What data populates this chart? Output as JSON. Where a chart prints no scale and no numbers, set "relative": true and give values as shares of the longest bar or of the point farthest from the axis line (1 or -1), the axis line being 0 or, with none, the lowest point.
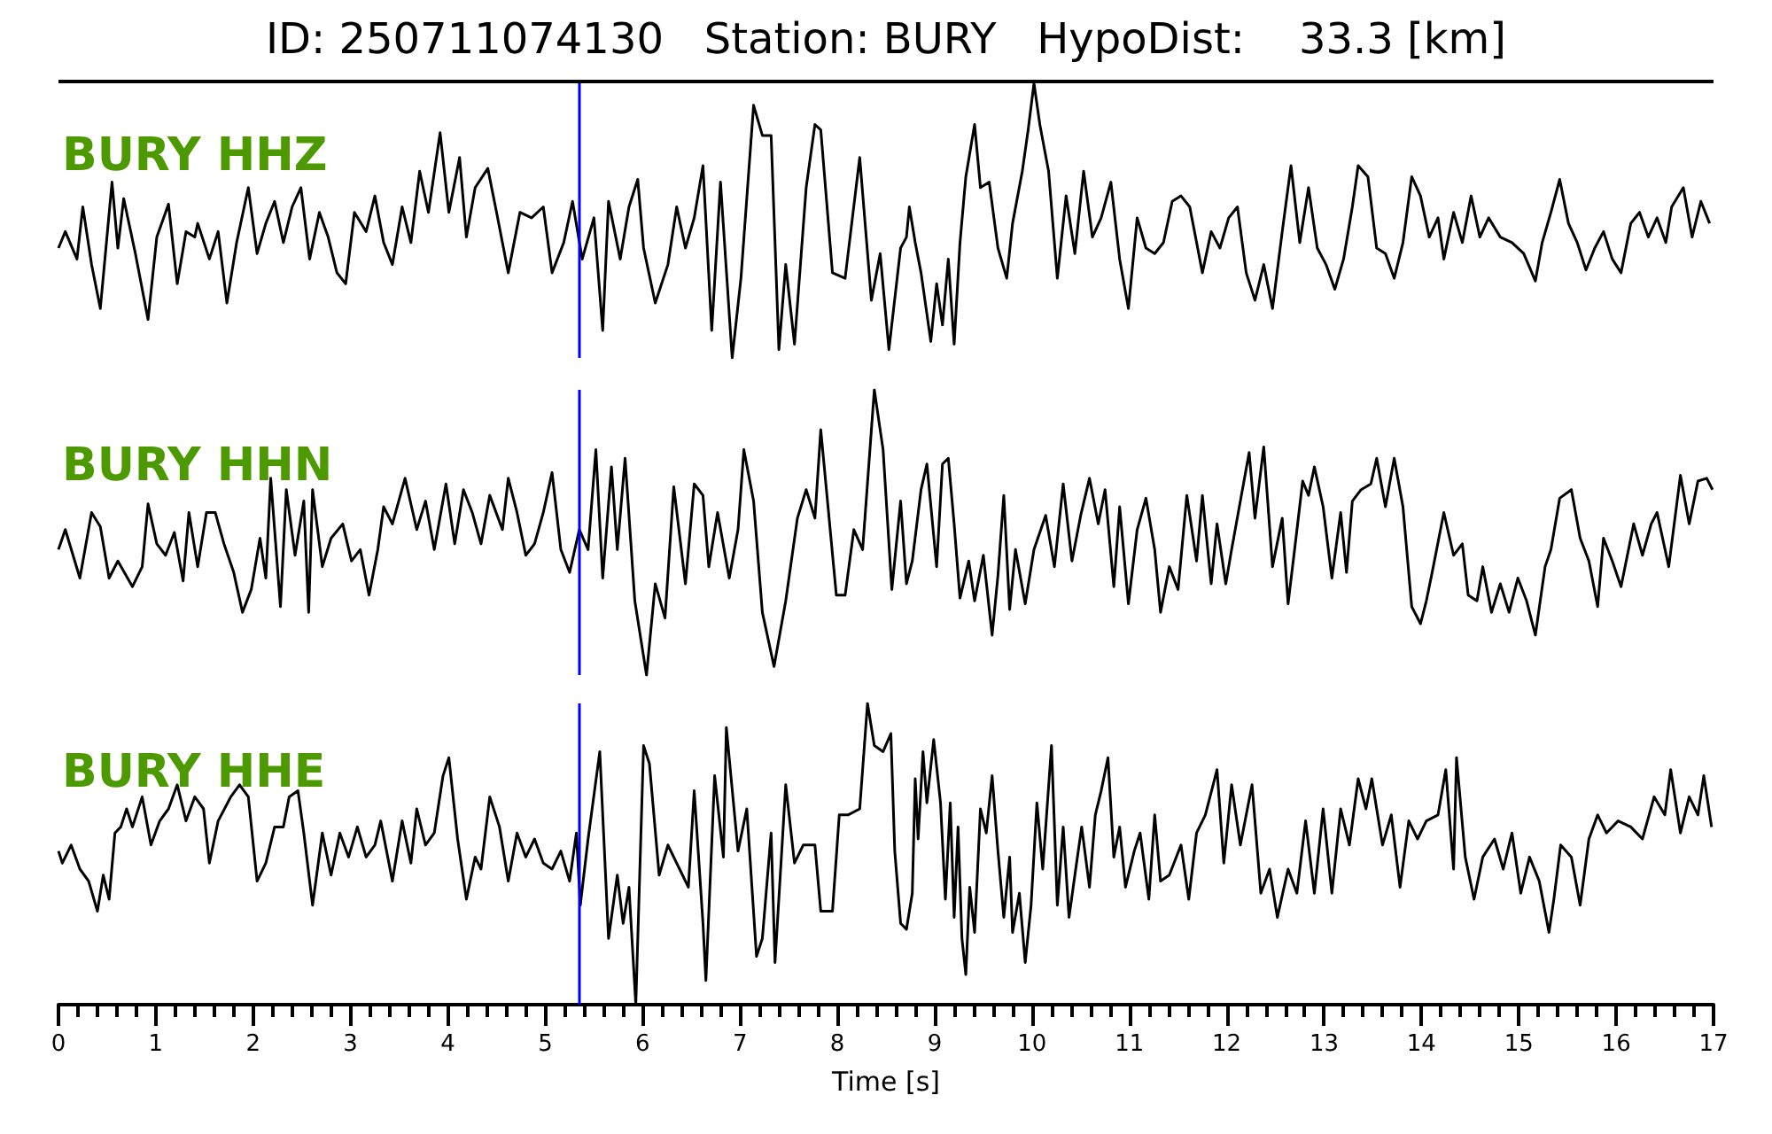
{
  "chart_data": [
    {
      "type": "line",
      "title": "ID: 250711074130   Station: BURY   HypoDist:    33.3 [km]",
      "annotations": [
        "BURY HHZ"
      ],
      "relative": true,
      "xlim": [
        0,
        17
      ],
      "tick_labels": false,
      "marker": "none",
      "color": "#000000",
      "ref_lines": [
        {
          "axis": "x",
          "value": 5.35,
          "color": "#0000ff"
        }
      ],
      "x": [
        0,
        0.07,
        0.19,
        0.25,
        0.34,
        0.43,
        0.55,
        0.61,
        0.67,
        0.79,
        0.92,
        1.01,
        1.13,
        1.22,
        1.31,
        1.4,
        1.43,
        1.55,
        1.64,
        1.73,
        1.83,
        1.95,
        2.04,
        2.13,
        2.22,
        2.31,
        2.4,
        2.49,
        2.58,
        2.68,
        2.77,
        2.86,
        2.95,
        3.04,
        3.16,
        3.25,
        3.34,
        3.43,
        3.53,
        3.62,
        3.71,
        3.8,
        3.92,
        4.01,
        4.12,
        4.19,
        4.28,
        4.41,
        4.5,
        4.62,
        4.74,
        4.86,
        4.98,
        5.07,
        5.19,
        5.28,
        5.38,
        5.5,
        5.59,
        5.65,
        5.77,
        5.86,
        5.95,
        6.01,
        6.13,
        6.26,
        6.35,
        6.44,
        6.53,
        6.62,
        6.71,
        6.8,
        6.92,
        7.01,
        7.14,
        7.23,
        7.32,
        7.4,
        7.47,
        7.56,
        7.68,
        7.77,
        7.83,
        7.95,
        8.08,
        8.23,
        8.35,
        8.44,
        8.53,
        8.65,
        8.71,
        8.74,
        8.8,
        8.86,
        8.96,
        9.02,
        9.08,
        9.14,
        9.2,
        9.26,
        9.32,
        9.41,
        9.47,
        9.56,
        9.65,
        9.74,
        9.8,
        9.9,
        9.96,
        10.02,
        10.08,
        10.17,
        10.26,
        10.35,
        10.44,
        10.53,
        10.62,
        10.71,
        10.81,
        10.9,
        10.99,
        11.08,
        11.17,
        11.26,
        11.35,
        11.44,
        11.53,
        11.62,
        11.75,
        11.84,
        11.93,
        12.02,
        12.11,
        12.2,
        12.29,
        12.38,
        12.47,
        12.57,
        12.66,
        12.75,
        12.84,
        12.93,
        13.02,
        13.11,
        13.2,
        13.29,
        13.35,
        13.45,
        13.54,
        13.63,
        13.72,
        13.81,
        13.9,
        13.99,
        14.08,
        14.17,
        14.23,
        14.33,
        14.42,
        14.51,
        14.6,
        14.69,
        14.81,
        14.93,
        15.05,
        15.17,
        15.24,
        15.33,
        15.42,
        15.51,
        15.6,
        15.69,
        15.78,
        15.87,
        15.96,
        16.05,
        16.15,
        16.24,
        16.33,
        16.42,
        16.51,
        16.57,
        16.69,
        16.78,
        16.87,
        16.96
      ],
      "values": [
        0.4,
        0.46,
        0.36,
        0.55,
        0.34,
        0.18,
        0.64,
        0.4,
        0.58,
        0.38,
        0.14,
        0.44,
        0.56,
        0.27,
        0.46,
        0.44,
        0.49,
        0.36,
        0.46,
        0.2,
        0.42,
        0.62,
        0.38,
        0.49,
        0.57,
        0.42,
        0.55,
        0.62,
        0.36,
        0.53,
        0.44,
        0.31,
        0.27,
        0.53,
        0.46,
        0.59,
        0.42,
        0.34,
        0.55,
        0.42,
        0.68,
        0.53,
        0.82,
        0.53,
        0.73,
        0.44,
        0.62,
        0.69,
        0.53,
        0.31,
        0.53,
        0.51,
        0.55,
        0.31,
        0.42,
        0.57,
        0.36,
        0.51,
        0.1,
        0.57,
        0.36,
        0.55,
        0.65,
        0.4,
        0.2,
        0.34,
        0.55,
        0.4,
        0.51,
        0.7,
        0.1,
        0.64,
        0.0,
        0.29,
        0.92,
        0.81,
        0.81,
        0.03,
        0.34,
        0.05,
        0.62,
        0.85,
        0.83,
        0.31,
        0.29,
        0.73,
        0.21,
        0.38,
        0.03,
        0.4,
        0.44,
        0.55,
        0.42,
        0.31,
        0.06,
        0.27,
        0.12,
        0.36,
        0.05,
        0.42,
        0.66,
        0.85,
        0.62,
        0.64,
        0.4,
        0.29,
        0.49,
        0.68,
        0.83,
        1.0,
        0.85,
        0.68,
        0.29,
        0.59,
        0.38,
        0.68,
        0.44,
        0.51,
        0.64,
        0.36,
        0.18,
        0.51,
        0.4,
        0.38,
        0.42,
        0.57,
        0.59,
        0.55,
        0.31,
        0.46,
        0.4,
        0.51,
        0.55,
        0.31,
        0.21,
        0.34,
        0.18,
        0.46,
        0.7,
        0.42,
        0.62,
        0.4,
        0.34,
        0.25,
        0.36,
        0.55,
        0.7,
        0.66,
        0.4,
        0.38,
        0.29,
        0.42,
        0.66,
        0.59,
        0.44,
        0.51,
        0.36,
        0.53,
        0.42,
        0.59,
        0.44,
        0.51,
        0.44,
        0.42,
        0.38,
        0.28,
        0.42,
        0.53,
        0.65,
        0.49,
        0.42,
        0.32,
        0.4,
        0.46,
        0.36,
        0.31,
        0.49,
        0.53,
        0.44,
        0.51,
        0.42,
        0.55,
        0.62,
        0.44,
        0.57,
        0.49
      ]
    },
    {
      "type": "line",
      "annotations": [
        "BURY HHN"
      ],
      "relative": true,
      "xlim": [
        0,
        17
      ],
      "tick_labels": false,
      "marker": "none",
      "color": "#000000",
      "ref_lines": [
        {
          "axis": "x",
          "value": 5.35,
          "color": "#0000ff"
        }
      ],
      "x": [
        0,
        0.07,
        0.22,
        0.34,
        0.43,
        0.52,
        0.61,
        0.76,
        0.86,
        0.92,
        1.01,
        1.1,
        1.19,
        1.28,
        1.34,
        1.43,
        1.52,
        1.61,
        1.7,
        1.8,
        1.89,
        1.98,
        2.07,
        2.13,
        2.18,
        2.28,
        2.34,
        2.43,
        2.52,
        2.57,
        2.61,
        2.71,
        2.8,
        2.92,
        3.01,
        3.1,
        3.19,
        3.28,
        3.34,
        3.43,
        3.56,
        3.68,
        3.77,
        3.86,
        3.98,
        4.07,
        4.16,
        4.25,
        4.34,
        4.43,
        4.56,
        4.62,
        4.71,
        4.8,
        4.89,
        4.98,
        5.07,
        5.16,
        5.25,
        5.35,
        5.44,
        5.52,
        5.59,
        5.68,
        5.74,
        5.82,
        5.92,
        6.04,
        6.13,
        6.23,
        6.32,
        6.44,
        6.53,
        6.62,
        6.68,
        6.77,
        6.89,
        6.98,
        7.04,
        7.14,
        7.23,
        7.35,
        7.47,
        7.59,
        7.68,
        7.77,
        7.83,
        7.99,
        8.08,
        8.17,
        8.26,
        8.38,
        8.47,
        8.56,
        8.65,
        8.71,
        8.77,
        8.86,
        8.92,
        9.02,
        9.08,
        9.14,
        9.2,
        9.26,
        9.35,
        9.41,
        9.5,
        9.59,
        9.65,
        9.71,
        9.77,
        9.83,
        9.93,
        10.02,
        10.14,
        10.23,
        10.32,
        10.41,
        10.5,
        10.59,
        10.68,
        10.75,
        10.84,
        10.9,
        10.99,
        11.08,
        11.17,
        11.26,
        11.32,
        11.41,
        11.5,
        11.59,
        11.69,
        11.75,
        11.84,
        11.9,
        11.99,
        12.05,
        12.14,
        12.23,
        12.29,
        12.38,
        12.47,
        12.57,
        12.63,
        12.69,
        12.78,
        12.84,
        12.9,
        12.99,
        13.08,
        13.17,
        13.23,
        13.29,
        13.38,
        13.48,
        13.54,
        13.63,
        13.72,
        13.81,
        13.9,
        13.99,
        14.05,
        14.11,
        14.23,
        14.33,
        14.42,
        14.48,
        14.57,
        14.63,
        14.72,
        14.81,
        14.9,
        14.99,
        15.08,
        15.17,
        15.27,
        15.33,
        15.42,
        15.54,
        15.63,
        15.72,
        15.81,
        15.87,
        15.96,
        16.05,
        16.18,
        16.27,
        16.36,
        16.42,
        16.54,
        16.66,
        16.75,
        16.84,
        16.93,
        16.99
      ],
      "values": [
        0.44,
        0.51,
        0.34,
        0.57,
        0.52,
        0.34,
        0.4,
        0.31,
        0.38,
        0.6,
        0.46,
        0.42,
        0.5,
        0.33,
        0.57,
        0.38,
        0.57,
        0.57,
        0.46,
        0.36,
        0.22,
        0.3,
        0.48,
        0.34,
        0.69,
        0.24,
        0.65,
        0.42,
        0.61,
        0.22,
        0.65,
        0.38,
        0.48,
        0.53,
        0.4,
        0.44,
        0.28,
        0.44,
        0.59,
        0.53,
        0.69,
        0.51,
        0.61,
        0.44,
        0.67,
        0.46,
        0.65,
        0.57,
        0.46,
        0.63,
        0.51,
        0.69,
        0.57,
        0.42,
        0.46,
        0.57,
        0.71,
        0.44,
        0.36,
        0.51,
        0.44,
        0.79,
        0.34,
        0.73,
        0.44,
        0.76,
        0.26,
        0.0,
        0.32,
        0.2,
        0.66,
        0.32,
        0.67,
        0.63,
        0.38,
        0.57,
        0.34,
        0.51,
        0.79,
        0.61,
        0.22,
        0.03,
        0.26,
        0.55,
        0.65,
        0.55,
        0.86,
        0.28,
        0.28,
        0.51,
        0.44,
        1.0,
        0.79,
        0.3,
        0.61,
        0.32,
        0.4,
        0.65,
        0.74,
        0.38,
        0.74,
        0.76,
        0.53,
        0.27,
        0.4,
        0.26,
        0.42,
        0.14,
        0.35,
        0.63,
        0.23,
        0.44,
        0.25,
        0.44,
        0.56,
        0.38,
        0.67,
        0.4,
        0.56,
        0.69,
        0.53,
        0.65,
        0.31,
        0.59,
        0.25,
        0.51,
        0.62,
        0.44,
        0.22,
        0.38,
        0.3,
        0.63,
        0.4,
        0.63,
        0.32,
        0.53,
        0.32,
        0.44,
        0.61,
        0.78,
        0.55,
        0.8,
        0.38,
        0.55,
        0.25,
        0.42,
        0.68,
        0.63,
        0.73,
        0.59,
        0.34,
        0.57,
        0.36,
        0.61,
        0.65,
        0.67,
        0.76,
        0.59,
        0.76,
        0.59,
        0.24,
        0.18,
        0.26,
        0.36,
        0.57,
        0.42,
        0.46,
        0.28,
        0.26,
        0.38,
        0.22,
        0.32,
        0.22,
        0.34,
        0.26,
        0.14,
        0.38,
        0.44,
        0.62,
        0.65,
        0.48,
        0.4,
        0.24,
        0.48,
        0.4,
        0.31,
        0.53,
        0.42,
        0.53,
        0.57,
        0.38,
        0.7,
        0.53,
        0.68,
        0.69,
        0.65
      ]
    },
    {
      "type": "line",
      "annotations": [
        "BURY HHE"
      ],
      "relative": true,
      "xlim": [
        0,
        17
      ],
      "xlabel": "Time [s]",
      "tick_labels": "x",
      "marker": "none",
      "color": "#000000",
      "xticks": [
        0,
        {
          "value": 0.2,
          "label": null
        },
        {
          "value": 0.4,
          "label": null
        },
        {
          "value": 0.6,
          "label": null
        },
        {
          "value": 0.8,
          "label": null
        },
        1,
        {
          "value": 1.2,
          "label": null
        },
        {
          "value": 1.4,
          "label": null
        },
        {
          "value": 1.6,
          "label": null
        },
        {
          "value": 1.8,
          "label": null
        },
        2,
        {
          "value": 2.2,
          "label": null
        },
        {
          "value": 2.4,
          "label": null
        },
        {
          "value": 2.6,
          "label": null
        },
        {
          "value": 2.8,
          "label": null
        },
        3,
        {
          "value": 3.2,
          "label": null
        },
        {
          "value": 3.4,
          "label": null
        },
        {
          "value": 3.6,
          "label": null
        },
        {
          "value": 3.8,
          "label": null
        },
        4,
        {
          "value": 4.2,
          "label": null
        },
        {
          "value": 4.4,
          "label": null
        },
        {
          "value": 4.6,
          "label": null
        },
        {
          "value": 4.8,
          "label": null
        },
        5,
        {
          "value": 5.2,
          "label": null
        },
        {
          "value": 5.4,
          "label": null
        },
        {
          "value": 5.6,
          "label": null
        },
        {
          "value": 5.8,
          "label": null
        },
        6,
        {
          "value": 6.2,
          "label": null
        },
        {
          "value": 6.4,
          "label": null
        },
        {
          "value": 6.6,
          "label": null
        },
        {
          "value": 6.8,
          "label": null
        },
        7,
        {
          "value": 7.2,
          "label": null
        },
        {
          "value": 7.4,
          "label": null
        },
        {
          "value": 7.6,
          "label": null
        },
        {
          "value": 7.8,
          "label": null
        },
        8,
        {
          "value": 8.2,
          "label": null
        },
        {
          "value": 8.4,
          "label": null
        },
        {
          "value": 8.6,
          "label": null
        },
        {
          "value": 8.8,
          "label": null
        },
        9,
        {
          "value": 9.2,
          "label": null
        },
        {
          "value": 9.4,
          "label": null
        },
        {
          "value": 9.6,
          "label": null
        },
        {
          "value": 9.8,
          "label": null
        },
        10,
        {
          "value": 10.2,
          "label": null
        },
        {
          "value": 10.4,
          "label": null
        },
        {
          "value": 10.6,
          "label": null
        },
        {
          "value": 10.8,
          "label": null
        },
        11,
        {
          "value": 11.2,
          "label": null
        },
        {
          "value": 11.4,
          "label": null
        },
        {
          "value": 11.6,
          "label": null
        },
        {
          "value": 11.8,
          "label": null
        },
        12,
        {
          "value": 12.2,
          "label": null
        },
        {
          "value": 12.4,
          "label": null
        },
        {
          "value": 12.6,
          "label": null
        },
        {
          "value": 12.8,
          "label": null
        },
        13,
        {
          "value": 13.2,
          "label": null
        },
        {
          "value": 13.4,
          "label": null
        },
        {
          "value": 13.6,
          "label": null
        },
        {
          "value": 13.8,
          "label": null
        },
        14,
        {
          "value": 14.2,
          "label": null
        },
        {
          "value": 14.4,
          "label": null
        },
        {
          "value": 14.6,
          "label": null
        },
        {
          "value": 14.8,
          "label": null
        },
        15,
        {
          "value": 15.2,
          "label": null
        },
        {
          "value": 15.4,
          "label": null
        },
        {
          "value": 15.6,
          "label": null
        },
        {
          "value": 15.8,
          "label": null
        },
        16,
        {
          "value": 16.2,
          "label": null
        },
        {
          "value": 16.4,
          "label": null
        },
        {
          "value": 16.6,
          "label": null
        },
        {
          "value": 16.8,
          "label": null
        },
        17
      ],
      "ref_lines": [
        {
          "axis": "x",
          "value": 5.35,
          "color": "#0000ff"
        }
      ],
      "x": [
        0,
        0.04,
        0.13,
        0.22,
        0.31,
        0.4,
        0.46,
        0.52,
        0.58,
        0.64,
        0.7,
        0.76,
        0.86,
        0.95,
        1.04,
        1.13,
        1.22,
        1.31,
        1.4,
        1.49,
        1.55,
        1.64,
        1.77,
        1.86,
        1.95,
        2.04,
        2.13,
        2.22,
        2.31,
        2.37,
        2.46,
        2.52,
        2.61,
        2.71,
        2.8,
        2.89,
        2.98,
        3.07,
        3.16,
        3.25,
        3.31,
        3.43,
        3.53,
        3.62,
        3.68,
        3.77,
        3.86,
        3.95,
        4.01,
        4.1,
        4.19,
        4.28,
        4.34,
        4.43,
        4.53,
        4.62,
        4.71,
        4.8,
        4.89,
        4.98,
        5.07,
        5.16,
        5.25,
        5.32,
        5.36,
        5.44,
        5.56,
        5.65,
        5.74,
        5.8,
        5.86,
        5.93,
        6.01,
        6.07,
        6.17,
        6.26,
        6.38,
        6.47,
        6.53,
        6.62,
        6.65,
        6.74,
        6.83,
        6.86,
        6.98,
        7.07,
        7.17,
        7.23,
        7.32,
        7.36,
        7.47,
        7.56,
        7.65,
        7.77,
        7.83,
        7.95,
        8.02,
        8.11,
        8.23,
        8.31,
        8.38,
        8.47,
        8.55,
        8.59,
        8.65,
        8.71,
        8.77,
        8.8,
        8.83,
        8.88,
        8.92,
        8.99,
        9.06,
        9.11,
        9.16,
        9.2,
        9.24,
        9.28,
        9.32,
        9.36,
        9.41,
        9.47,
        9.53,
        9.59,
        9.65,
        9.71,
        9.77,
        9.8,
        9.87,
        9.93,
        9.99,
        10.05,
        10.11,
        10.2,
        10.26,
        10.32,
        10.38,
        10.44,
        10.51,
        10.59,
        10.65,
        10.71,
        10.78,
        10.84,
        10.9,
        10.96,
        11.05,
        11.11,
        11.2,
        11.26,
        11.32,
        11.41,
        11.53,
        11.61,
        11.69,
        11.78,
        11.9,
        11.97,
        12.05,
        12.14,
        12.26,
        12.35,
        12.44,
        12.52,
        12.63,
        12.72,
        12.81,
        12.9,
        12.99,
        13.08,
        13.17,
        13.26,
        13.35,
        13.43,
        13.49,
        13.6,
        13.69,
        13.78,
        13.87,
        13.96,
        14.05,
        14.17,
        14.25,
        14.33,
        14.36,
        14.45,
        14.54,
        14.63,
        14.75,
        14.84,
        14.93,
        15.02,
        15.11,
        15.21,
        15.31,
        15.36,
        15.43,
        15.54,
        15.63,
        15.72,
        15.81,
        15.9,
        16.02,
        16.15,
        16.27,
        16.39,
        16.5,
        16.56,
        16.66,
        16.75,
        16.84,
        16.9,
        16.98
      ],
      "values": [
        0.51,
        0.47,
        0.53,
        0.45,
        0.41,
        0.31,
        0.43,
        0.35,
        0.57,
        0.59,
        0.65,
        0.59,
        0.69,
        0.53,
        0.61,
        0.65,
        0.73,
        0.61,
        0.69,
        0.65,
        0.47,
        0.61,
        0.69,
        0.73,
        0.69,
        0.41,
        0.47,
        0.59,
        0.59,
        0.69,
        0.71,
        0.57,
        0.33,
        0.57,
        0.43,
        0.57,
        0.49,
        0.59,
        0.49,
        0.53,
        0.61,
        0.41,
        0.61,
        0.47,
        0.65,
        0.53,
        0.57,
        0.76,
        0.82,
        0.55,
        0.35,
        0.49,
        0.45,
        0.69,
        0.59,
        0.41,
        0.57,
        0.49,
        0.55,
        0.47,
        0.45,
        0.51,
        0.41,
        0.57,
        0.33,
        0.55,
        0.84,
        0.22,
        0.43,
        0.27,
        0.39,
        0.0,
        0.86,
        0.8,
        0.43,
        0.53,
        0.45,
        0.39,
        0.71,
        0.27,
        0.08,
        0.76,
        0.49,
        0.92,
        0.51,
        0.65,
        0.16,
        0.22,
        0.57,
        0.14,
        0.73,
        0.47,
        0.53,
        0.53,
        0.31,
        0.31,
        0.63,
        0.63,
        0.65,
        1.0,
        0.86,
        0.84,
        0.9,
        0.51,
        0.27,
        0.25,
        0.37,
        0.75,
        0.55,
        0.84,
        0.67,
        0.88,
        0.67,
        0.35,
        0.67,
        0.29,
        0.59,
        0.22,
        0.1,
        0.39,
        0.24,
        0.65,
        0.57,
        0.76,
        0.51,
        0.29,
        0.49,
        0.24,
        0.37,
        0.14,
        0.33,
        0.67,
        0.45,
        0.86,
        0.33,
        0.59,
        0.29,
        0.43,
        0.59,
        0.39,
        0.63,
        0.71,
        0.82,
        0.49,
        0.59,
        0.39,
        0.51,
        0.57,
        0.35,
        0.63,
        0.41,
        0.43,
        0.53,
        0.35,
        0.57,
        0.63,
        0.78,
        0.47,
        0.73,
        0.53,
        0.73,
        0.37,
        0.45,
        0.29,
        0.45,
        0.37,
        0.61,
        0.37,
        0.65,
        0.37,
        0.65,
        0.53,
        0.75,
        0.65,
        0.75,
        0.53,
        0.63,
        0.39,
        0.61,
        0.55,
        0.61,
        0.63,
        0.78,
        0.45,
        0.82,
        0.49,
        0.35,
        0.49,
        0.55,
        0.45,
        0.57,
        0.37,
        0.49,
        0.41,
        0.24,
        0.35,
        0.53,
        0.49,
        0.33,
        0.55,
        0.63,
        0.57,
        0.61,
        0.59,
        0.55,
        0.69,
        0.63,
        0.78,
        0.57,
        0.69,
        0.63,
        0.76,
        0.59
      ]
    }
  ]
}
